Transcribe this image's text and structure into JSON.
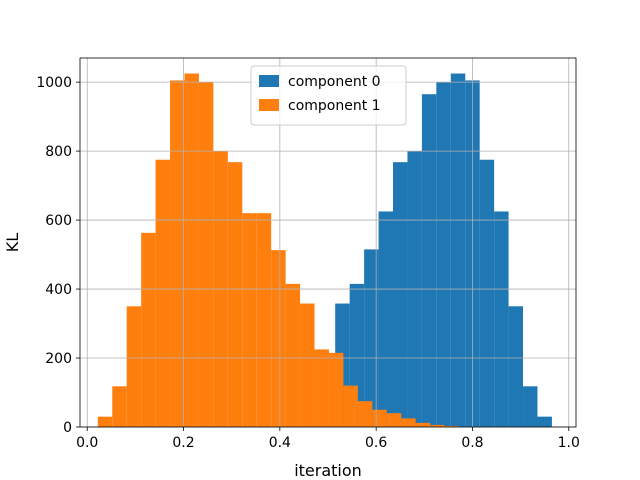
{
  "chart_data": {
    "type": "bar",
    "title": "",
    "xlabel": "iteration",
    "ylabel": "KL",
    "xlim": [
      -0.015,
      1.015
    ],
    "ylim": [
      0,
      1070
    ],
    "xticks": [
      0.0,
      0.2,
      0.4,
      0.6,
      0.8,
      1.0
    ],
    "xtick_labels": [
      "0.0",
      "0.2",
      "0.4",
      "0.6",
      "0.8",
      "1.0"
    ],
    "yticks": [
      0,
      200,
      400,
      600,
      800,
      1000
    ],
    "ytick_labels": [
      "0",
      "200",
      "400",
      "600",
      "800",
      "1000"
    ],
    "grid": true,
    "legend_position": "top-center",
    "series": [
      {
        "name": "component 0",
        "color": "#1f77b4",
        "bins": [
          [
            0.395,
            0.425,
            2
          ],
          [
            0.425,
            0.455,
            3
          ],
          [
            0.455,
            0.485,
            5
          ],
          [
            0.485,
            0.515,
            8
          ],
          [
            0.515,
            0.545,
            358
          ],
          [
            0.545,
            0.575,
            415
          ],
          [
            0.575,
            0.605,
            515
          ],
          [
            0.605,
            0.635,
            625
          ],
          [
            0.635,
            0.665,
            768
          ],
          [
            0.665,
            0.695,
            800
          ],
          [
            0.695,
            0.725,
            965
          ],
          [
            0.725,
            0.755,
            1000
          ],
          [
            0.755,
            0.785,
            1025
          ],
          [
            0.785,
            0.815,
            1005
          ],
          [
            0.815,
            0.845,
            775
          ],
          [
            0.845,
            0.875,
            625
          ],
          [
            0.875,
            0.905,
            350
          ],
          [
            0.905,
            0.935,
            118
          ],
          [
            0.935,
            0.965,
            30
          ]
        ]
      },
      {
        "name": "component 1",
        "color": "#ff7f0e",
        "bins": [
          [
            0.022,
            0.052,
            30
          ],
          [
            0.052,
            0.082,
            118
          ],
          [
            0.082,
            0.112,
            350
          ],
          [
            0.112,
            0.142,
            563
          ],
          [
            0.142,
            0.172,
            775
          ],
          [
            0.172,
            0.202,
            1005
          ],
          [
            0.202,
            0.232,
            1025
          ],
          [
            0.232,
            0.262,
            1000
          ],
          [
            0.262,
            0.292,
            800
          ],
          [
            0.292,
            0.322,
            768
          ],
          [
            0.322,
            0.352,
            620
          ],
          [
            0.352,
            0.382,
            620
          ],
          [
            0.382,
            0.412,
            513
          ],
          [
            0.412,
            0.442,
            415
          ],
          [
            0.442,
            0.472,
            358
          ],
          [
            0.472,
            0.502,
            225
          ],
          [
            0.502,
            0.532,
            215
          ],
          [
            0.532,
            0.562,
            120
          ],
          [
            0.562,
            0.592,
            75
          ],
          [
            0.592,
            0.622,
            50
          ],
          [
            0.622,
            0.652,
            40
          ],
          [
            0.652,
            0.682,
            25
          ],
          [
            0.682,
            0.712,
            12
          ],
          [
            0.712,
            0.742,
            6
          ],
          [
            0.742,
            0.772,
            3
          ]
        ]
      }
    ]
  }
}
